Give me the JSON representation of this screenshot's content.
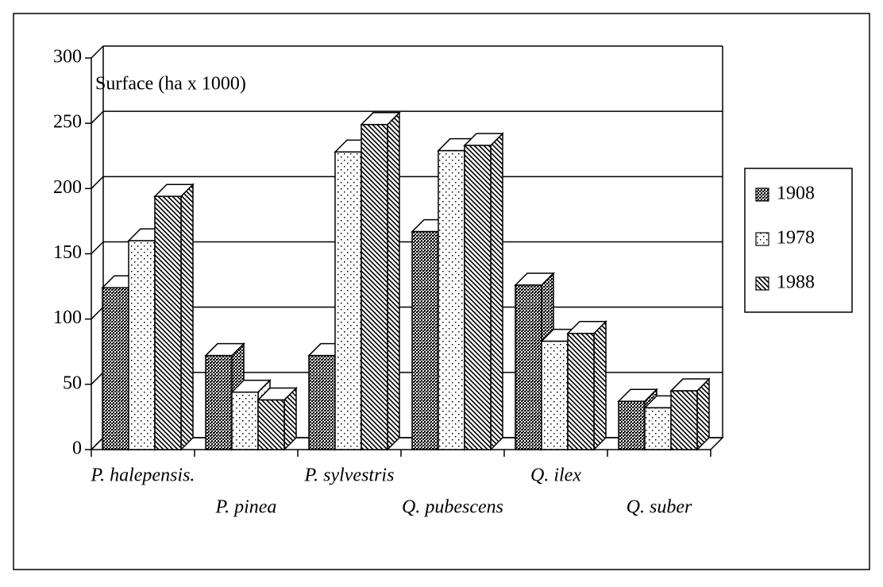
{
  "chart_data": {
    "type": "bar3d",
    "annotation": "Surface (ha x 1000)",
    "categories": [
      "P. halepensis.",
      "P. pinea",
      "P. sylvestris",
      "Q. pubescens",
      "Q. ilex",
      "Q. suber"
    ],
    "series": [
      {
        "name": "1908",
        "values": [
          124,
          72,
          72,
          167,
          126,
          37
        ]
      },
      {
        "name": "1978",
        "values": [
          160,
          44,
          228,
          229,
          83,
          32
        ]
      },
      {
        "name": "1988",
        "values": [
          194,
          38,
          249,
          233,
          89,
          45
        ]
      }
    ],
    "ylim": [
      0,
      300
    ],
    "yticks": [
      0,
      50,
      100,
      150,
      200,
      250,
      300
    ],
    "grid": true,
    "legend": "right"
  }
}
